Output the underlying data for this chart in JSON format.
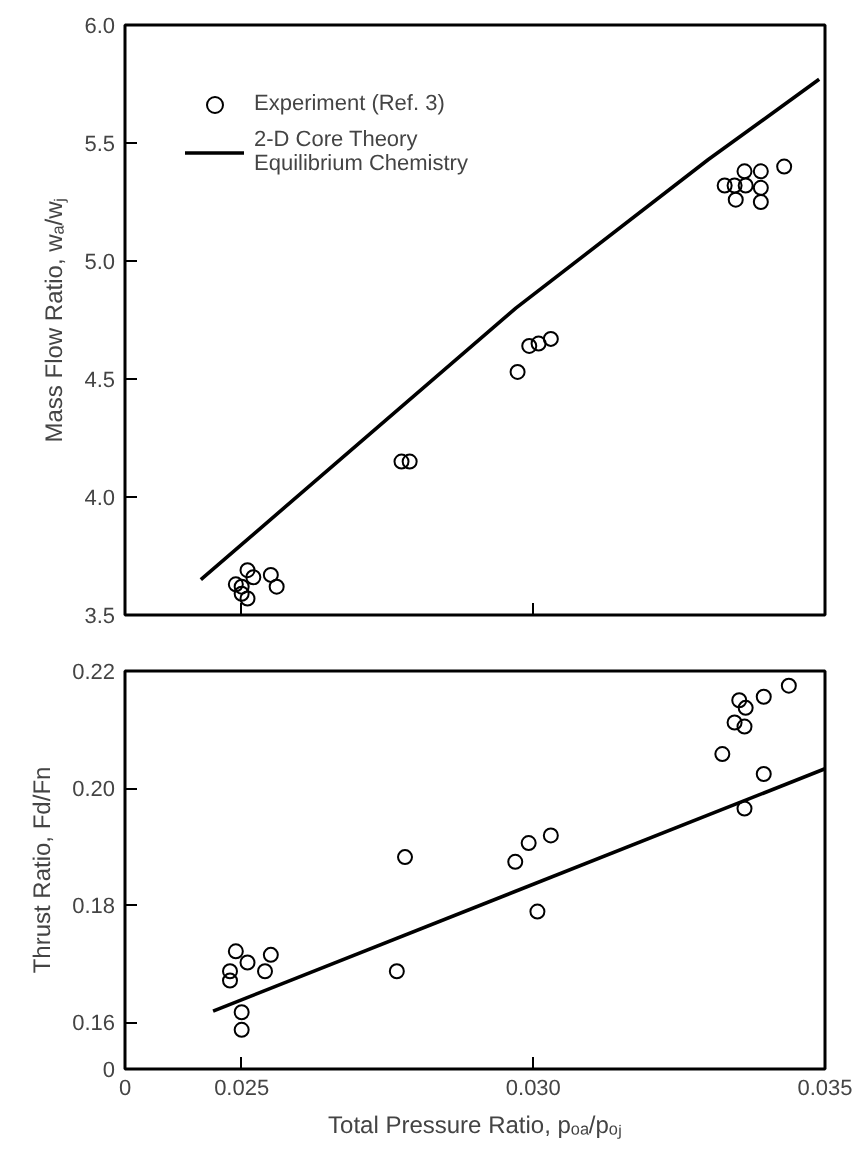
{
  "chart_data": [
    {
      "type": "scatter",
      "ylabel": "Mass Flow Ratio, wₐ/wⱼ",
      "xlim": [
        0.023,
        0.035
      ],
      "ylim": [
        3.5,
        6.0
      ],
      "xticks": [
        0.025,
        0.03,
        0.035
      ],
      "yticks": [
        3.5,
        {
          "value": 4,
          "label": "4.0"
        },
        4.5,
        {
          "value": 5,
          "label": "5.0"
        },
        5.5,
        {
          "value": 6,
          "label": "6.0"
        }
      ],
      "tick_labels": "y",
      "grid": false,
      "legend": "top left",
      "series": [
        {
          "name": "Experiment (Ref. 3)",
          "marker": "circle",
          "color": "#000000",
          "x": [
            0.0249,
            0.025,
            0.0251,
            0.0252,
            0.0255,
            0.0256,
            0.025,
            0.0251,
            0.02774,
            0.02788,
            0.02973,
            0.02993,
            0.03009,
            0.0303,
            0.03328,
            0.03345,
            0.03364,
            0.03362,
            0.0339,
            0.03347,
            0.0339,
            0.0343,
            0.0339
          ],
          "values": [
            3.63,
            3.62,
            3.69,
            3.66,
            3.67,
            3.62,
            3.59,
            3.57,
            4.15,
            4.15,
            4.53,
            4.64,
            4.65,
            4.67,
            5.32,
            5.32,
            5.32,
            5.38,
            5.38,
            5.26,
            5.25,
            5.4,
            5.31
          ]
        },
        {
          "name": "2-D Core Theory\nEquilibrium Chemistry",
          "type": "line",
          "marker": "none",
          "line_style": "solid",
          "color": "#000000",
          "x": [
            0.0243,
            0.0297,
            0.033,
            0.0349
          ],
          "values": [
            3.65,
            4.8,
            5.43,
            5.77
          ]
        }
      ]
    },
    {
      "type": "scatter",
      "xlabel": "Total Pressure Ratio, pₒₐ/pₒⱼ",
      "ylabel": "Thrust Ratio, Fd/Fn",
      "xlim": [
        0.023,
        0.035
      ],
      "ylim": [
        0.152,
        0.22
      ],
      "xticks": [
        {
          "value": 0.023,
          "label": "0"
        },
        {
          "value": 0.025,
          "label": "0.025"
        },
        {
          "value": 0.03,
          "label": "0.030"
        },
        {
          "value": 0.035,
          "label": "0.035"
        }
      ],
      "yticks": [
        {
          "value": 0.152,
          "label": "0"
        },
        0.16,
        0.18,
        {
          "value": 0.2,
          "label": "0.20"
        },
        0.22
      ],
      "grid": false,
      "series": [
        {
          "marker": "circle",
          "color": "#000000",
          "x": [
            0.0249,
            0.0248,
            0.0248,
            0.0251,
            0.0254,
            0.0255,
            0.025,
            0.025,
            0.02766,
            0.0278,
            0.02969,
            0.02992,
            0.0303,
            0.03007,
            0.03324,
            0.03345,
            0.03362,
            0.03353,
            0.03364,
            0.03395,
            0.03438,
            0.03395,
            0.03362
          ],
          "values": [
            0.1721,
            0.1687,
            0.1671,
            0.1702,
            0.1687,
            0.1715,
            0.1617,
            0.1587,
            0.1687,
            0.1882,
            0.1874,
            0.1906,
            0.1919,
            0.1789,
            0.2058,
            0.2112,
            0.2105,
            0.215,
            0.2137,
            0.2156,
            0.2175,
            0.2024,
            0.1965
          ]
        },
        {
          "type": "line",
          "marker": "none",
          "line_style": "solid",
          "color": "#000000",
          "x": [
            0.02451,
            0.035
          ],
          "values": [
            0.1619,
            0.2033
          ]
        }
      ]
    }
  ]
}
